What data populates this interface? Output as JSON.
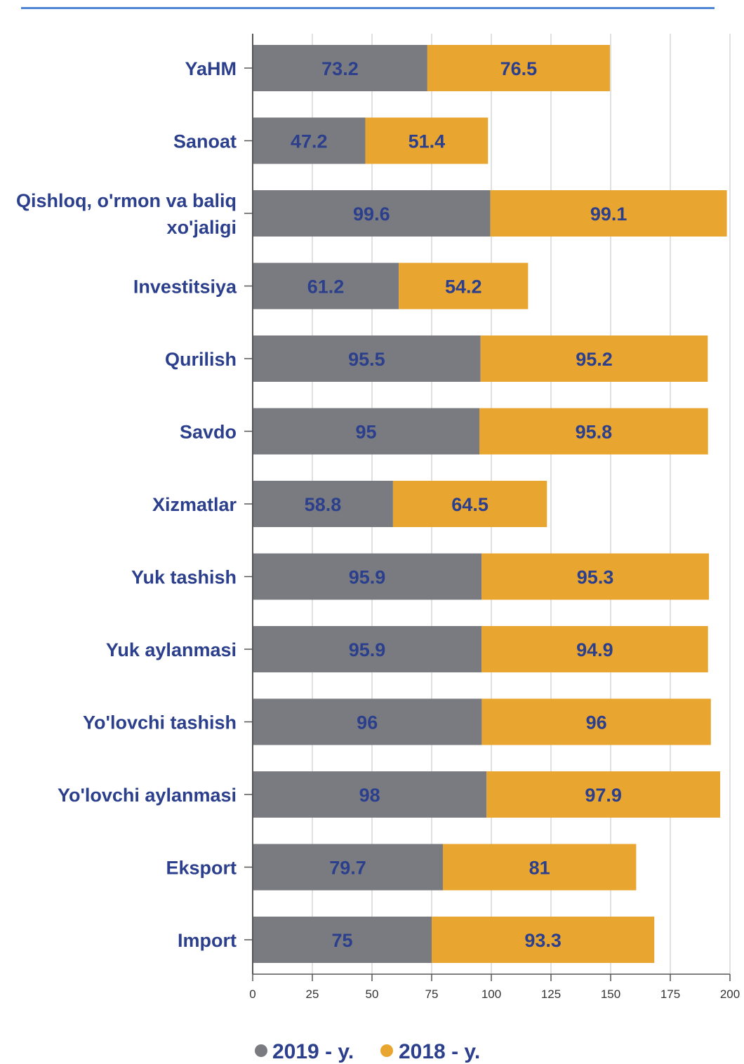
{
  "chart_data": {
    "type": "bar",
    "orientation": "horizontal",
    "stacked": true,
    "title": "",
    "xlabel": "",
    "ylabel": "",
    "xlim": [
      0,
      200
    ],
    "x_ticks": [
      "0",
      "25",
      "50",
      "75",
      "100",
      "125",
      "150",
      "175",
      "200"
    ],
    "grid": "vertical",
    "legend_position": "bottom",
    "categories": [
      [
        "YaHM"
      ],
      [
        "Sanoat"
      ],
      [
        "Qishloq, o'rmon va baliq",
        "xo'jaligi"
      ],
      [
        "Investitsiya"
      ],
      [
        "Qurilish"
      ],
      [
        "Savdo"
      ],
      [
        "Xizmatlar"
      ],
      [
        "Yuk tashish"
      ],
      [
        "Yuk aylanmasi"
      ],
      [
        "Yo'lovchi tashish"
      ],
      [
        "Yo'lovchi aylanmasi"
      ],
      [
        "Eksport"
      ],
      [
        "Import"
      ]
    ],
    "series": [
      {
        "name": "2019 - y.",
        "color": "#7a7b80",
        "values": [
          73.2,
          47.2,
          99.6,
          61.2,
          95.5,
          95,
          58.8,
          95.9,
          95.9,
          96,
          98,
          79.7,
          75
        ],
        "labels": [
          "73.2",
          "47.2",
          "99.6",
          "61.2",
          "95.5",
          "95",
          "58.8",
          "95.9",
          "95.9",
          "96",
          "98",
          "79.7",
          "75"
        ]
      },
      {
        "name": "2018 - y.",
        "color": "#e8a630",
        "values": [
          76.5,
          51.4,
          99.1,
          54.2,
          95.2,
          95.8,
          64.5,
          95.3,
          94.9,
          96,
          97.9,
          81,
          93.3
        ],
        "labels": [
          "76.5",
          "51.4",
          "99.1",
          "54.2",
          "95.2",
          "95.8",
          "64.5",
          "95.3",
          "94.9",
          "96",
          "97.9",
          "81",
          "93.3"
        ]
      }
    ]
  }
}
